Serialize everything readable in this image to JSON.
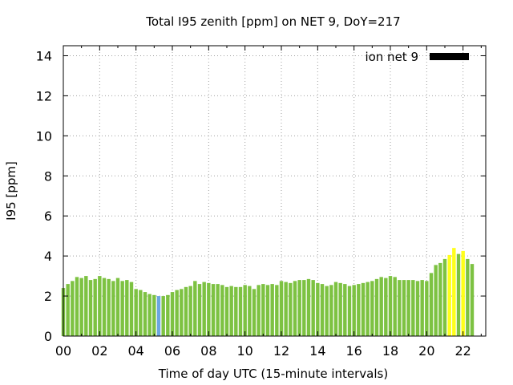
{
  "chart_data": {
    "type": "bar",
    "title": "Total I95 zenith [ppm] on NET 9, DoY=217",
    "xlabel": "Time of day UTC (15-minute intervals)",
    "ylabel": "I95 [ppm]",
    "ylim": [
      0,
      14.5
    ],
    "xlim": [
      0,
      23.25
    ],
    "yticks": [
      0,
      2,
      4,
      6,
      8,
      10,
      12,
      14
    ],
    "xticks": [
      "00",
      "02",
      "04",
      "06",
      "08",
      "10",
      "12",
      "14",
      "16",
      "18",
      "20",
      "22"
    ],
    "grid": true,
    "legend": {
      "label": "ion net 9",
      "color": "#000000",
      "placement": "top-right"
    },
    "colors": {
      "normal": "#7dc242",
      "low": "#6ca6e0",
      "elevated": "#ffff1a"
    },
    "bar_interval_hours": 0.25,
    "series": [
      {
        "values": [
          2.4,
          2.6,
          2.75,
          2.95,
          2.9,
          3.0,
          2.8,
          2.85,
          3.0,
          2.9,
          2.85,
          2.75,
          2.9,
          2.75,
          2.8,
          2.7,
          2.35,
          2.3,
          2.2,
          2.1,
          2.05,
          2.0,
          2.0,
          2.05,
          2.2,
          2.3,
          2.35,
          2.45,
          2.5,
          2.75,
          2.6,
          2.7,
          2.65,
          2.6,
          2.6,
          2.55,
          2.45,
          2.5,
          2.45,
          2.45,
          2.55,
          2.5,
          2.35,
          2.55,
          2.6,
          2.55,
          2.6,
          2.55,
          2.75,
          2.7,
          2.65,
          2.75,
          2.8,
          2.8,
          2.85,
          2.8,
          2.65,
          2.6,
          2.5,
          2.55,
          2.7,
          2.65,
          2.6,
          2.5,
          2.55,
          2.6,
          2.65,
          2.7,
          2.75,
          2.85,
          2.95,
          2.9,
          3.0,
          2.95,
          2.8,
          2.8,
          2.8,
          2.8,
          2.75,
          2.8,
          2.75,
          3.15,
          3.55,
          3.65,
          3.85,
          4.05,
          4.4,
          4.1,
          4.25,
          3.85,
          3.6
        ],
        "categories": [
          "normal",
          "normal",
          "normal",
          "normal",
          "normal",
          "normal",
          "normal",
          "normal",
          "normal",
          "normal",
          "normal",
          "normal",
          "normal",
          "normal",
          "normal",
          "normal",
          "normal",
          "normal",
          "normal",
          "normal",
          "normal",
          "low",
          "normal",
          "normal",
          "normal",
          "normal",
          "normal",
          "normal",
          "normal",
          "normal",
          "normal",
          "normal",
          "normal",
          "normal",
          "normal",
          "normal",
          "normal",
          "normal",
          "normal",
          "normal",
          "normal",
          "normal",
          "normal",
          "normal",
          "normal",
          "normal",
          "normal",
          "normal",
          "normal",
          "normal",
          "normal",
          "normal",
          "normal",
          "normal",
          "normal",
          "normal",
          "normal",
          "normal",
          "normal",
          "normal",
          "normal",
          "normal",
          "normal",
          "normal",
          "normal",
          "normal",
          "normal",
          "normal",
          "normal",
          "normal",
          "normal",
          "normal",
          "normal",
          "normal",
          "normal",
          "normal",
          "normal",
          "normal",
          "normal",
          "normal",
          "normal",
          "normal",
          "normal",
          "normal",
          "normal",
          "elevated",
          "elevated",
          "normal",
          "elevated",
          "normal",
          "normal"
        ]
      }
    ]
  }
}
